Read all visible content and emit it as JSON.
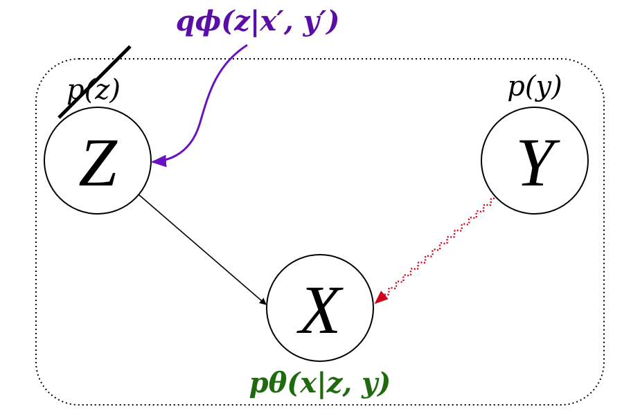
{
  "nodes": {
    "z": {
      "letter": "Z",
      "prior_label": "p(z)",
      "prior_struck": true
    },
    "y": {
      "letter": "Y",
      "prior_label": "p(y)"
    },
    "x": {
      "letter": "X"
    }
  },
  "labels": {
    "encoder": "qϕ(z|x′, y′)",
    "decoder": "pθ(x|z, y)"
  },
  "edges": [
    {
      "from": "Z",
      "to": "X",
      "style": "solid",
      "color": "#000000"
    },
    {
      "from": "Y",
      "to": "X",
      "style": "wavy-dotted",
      "color": "#d0021b"
    },
    {
      "from": "encoder-label",
      "to": "Z",
      "style": "curved",
      "color": "#6a12c0"
    }
  ],
  "colors": {
    "encoder": "#5b0ea6",
    "decoder": "#1f6a0f",
    "wavy_edge": "#d0021b",
    "plate_border": "#000000"
  }
}
